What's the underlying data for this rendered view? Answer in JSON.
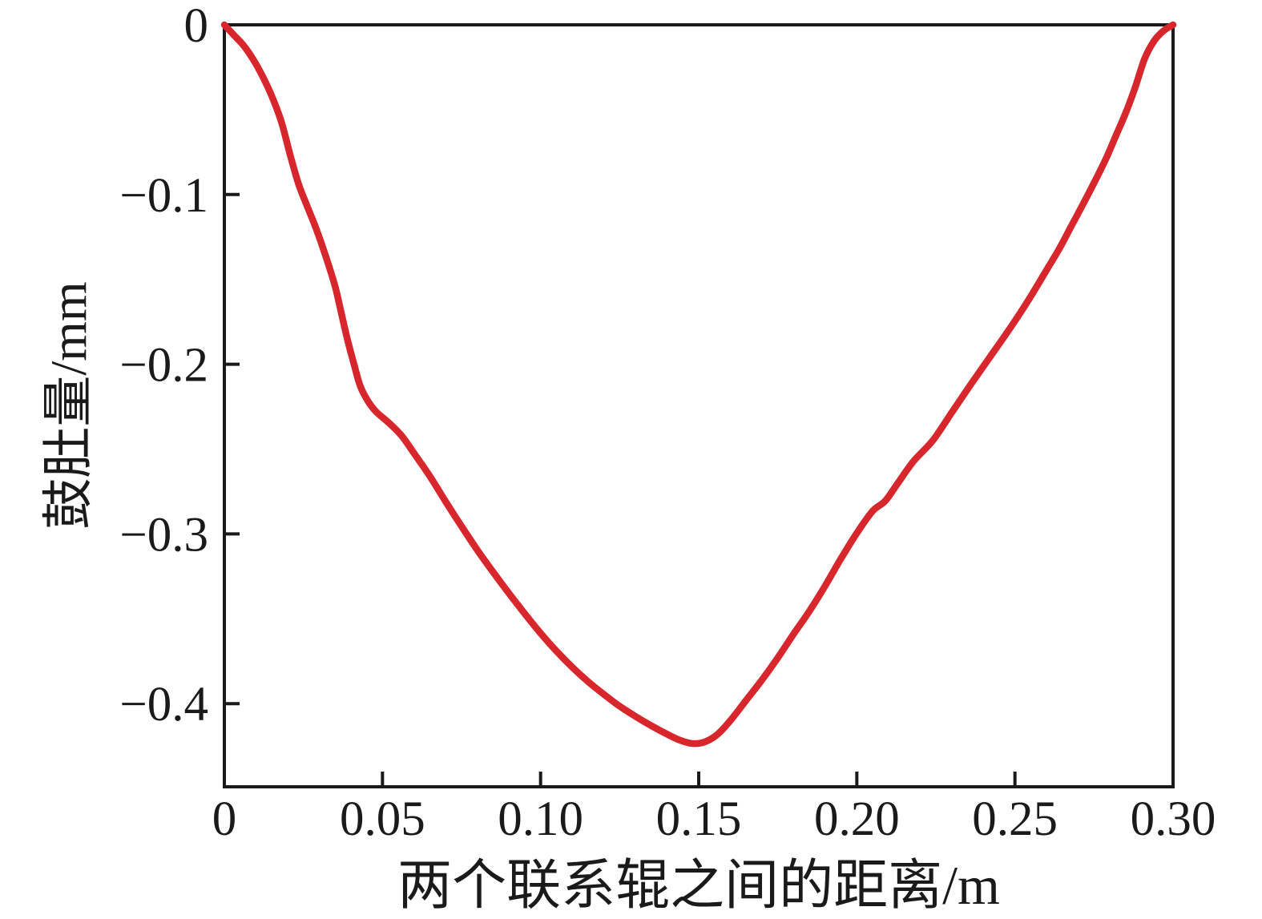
{
  "chart_data": {
    "type": "line",
    "title": "",
    "xlabel": "两个联系辊之间的距离/m",
    "ylabel": "鼓肚量/mm",
    "xlim": [
      0,
      0.3
    ],
    "ylim": [
      -0.449,
      0
    ],
    "grid": false,
    "legend_position": "none",
    "frame": "full-box",
    "axis_color": "#1a1a1a",
    "xticks": {
      "values": [
        0,
        0.05,
        0.1,
        0.15,
        0.2,
        0.25,
        0.3
      ],
      "labels": [
        "0",
        "0.05",
        "0.10",
        "0.15",
        "0.20",
        "0.25",
        "0.30"
      ]
    },
    "yticks": {
      "values": [
        0,
        -0.1,
        -0.2,
        -0.3,
        -0.4
      ],
      "labels": [
        "0",
        "−0.1",
        "−0.2",
        "−0.3",
        "−0.4"
      ]
    },
    "series": [
      {
        "color": "#d7262c",
        "points": [
          [
            0.0,
            0.0
          ],
          [
            0.003,
            -0.006
          ],
          [
            0.006,
            -0.012
          ],
          [
            0.009,
            -0.02
          ],
          [
            0.012,
            -0.03
          ],
          [
            0.015,
            -0.042
          ],
          [
            0.018,
            -0.057
          ],
          [
            0.021,
            -0.078
          ],
          [
            0.0235,
            -0.094
          ],
          [
            0.026,
            -0.106
          ],
          [
            0.029,
            -0.12
          ],
          [
            0.032,
            -0.136
          ],
          [
            0.035,
            -0.154
          ],
          [
            0.037,
            -0.17
          ],
          [
            0.039,
            -0.186
          ],
          [
            0.041,
            -0.2
          ],
          [
            0.043,
            -0.213
          ],
          [
            0.0455,
            -0.222
          ],
          [
            0.048,
            -0.228
          ],
          [
            0.052,
            -0.2345
          ],
          [
            0.056,
            -0.242
          ],
          [
            0.06,
            -0.2525
          ],
          [
            0.065,
            -0.266
          ],
          [
            0.07,
            -0.281
          ],
          [
            0.075,
            -0.2955
          ],
          [
            0.08,
            -0.3095
          ],
          [
            0.085,
            -0.3225
          ],
          [
            0.09,
            -0.335
          ],
          [
            0.095,
            -0.347
          ],
          [
            0.1,
            -0.3585
          ],
          [
            0.105,
            -0.369
          ],
          [
            0.11,
            -0.3785
          ],
          [
            0.115,
            -0.387
          ],
          [
            0.12,
            -0.3945
          ],
          [
            0.125,
            -0.4015
          ],
          [
            0.13,
            -0.4075
          ],
          [
            0.135,
            -0.413
          ],
          [
            0.14,
            -0.418
          ],
          [
            0.144,
            -0.4215
          ],
          [
            0.148,
            -0.4235
          ],
          [
            0.152,
            -0.4225
          ],
          [
            0.156,
            -0.418
          ],
          [
            0.16,
            -0.41
          ],
          [
            0.165,
            -0.398
          ],
          [
            0.17,
            -0.386
          ],
          [
            0.175,
            -0.373
          ],
          [
            0.18,
            -0.359
          ],
          [
            0.185,
            -0.3455
          ],
          [
            0.19,
            -0.3305
          ],
          [
            0.195,
            -0.3145
          ],
          [
            0.2,
            -0.2995
          ],
          [
            0.205,
            -0.2865
          ],
          [
            0.209,
            -0.2805
          ],
          [
            0.213,
            -0.27
          ],
          [
            0.218,
            -0.257
          ],
          [
            0.224,
            -0.245
          ],
          [
            0.23,
            -0.2285
          ],
          [
            0.236,
            -0.212
          ],
          [
            0.242,
            -0.196
          ],
          [
            0.248,
            -0.18
          ],
          [
            0.254,
            -0.163
          ],
          [
            0.26,
            -0.1445
          ],
          [
            0.264,
            -0.132
          ],
          [
            0.268,
            -0.118
          ],
          [
            0.272,
            -0.104
          ],
          [
            0.276,
            -0.0895
          ],
          [
            0.279,
            -0.078
          ],
          [
            0.282,
            -0.065
          ],
          [
            0.285,
            -0.052
          ],
          [
            0.288,
            -0.037
          ],
          [
            0.291,
            -0.02
          ],
          [
            0.294,
            -0.0095
          ],
          [
            0.297,
            -0.0035
          ],
          [
            0.3,
            0.0
          ]
        ]
      }
    ]
  }
}
